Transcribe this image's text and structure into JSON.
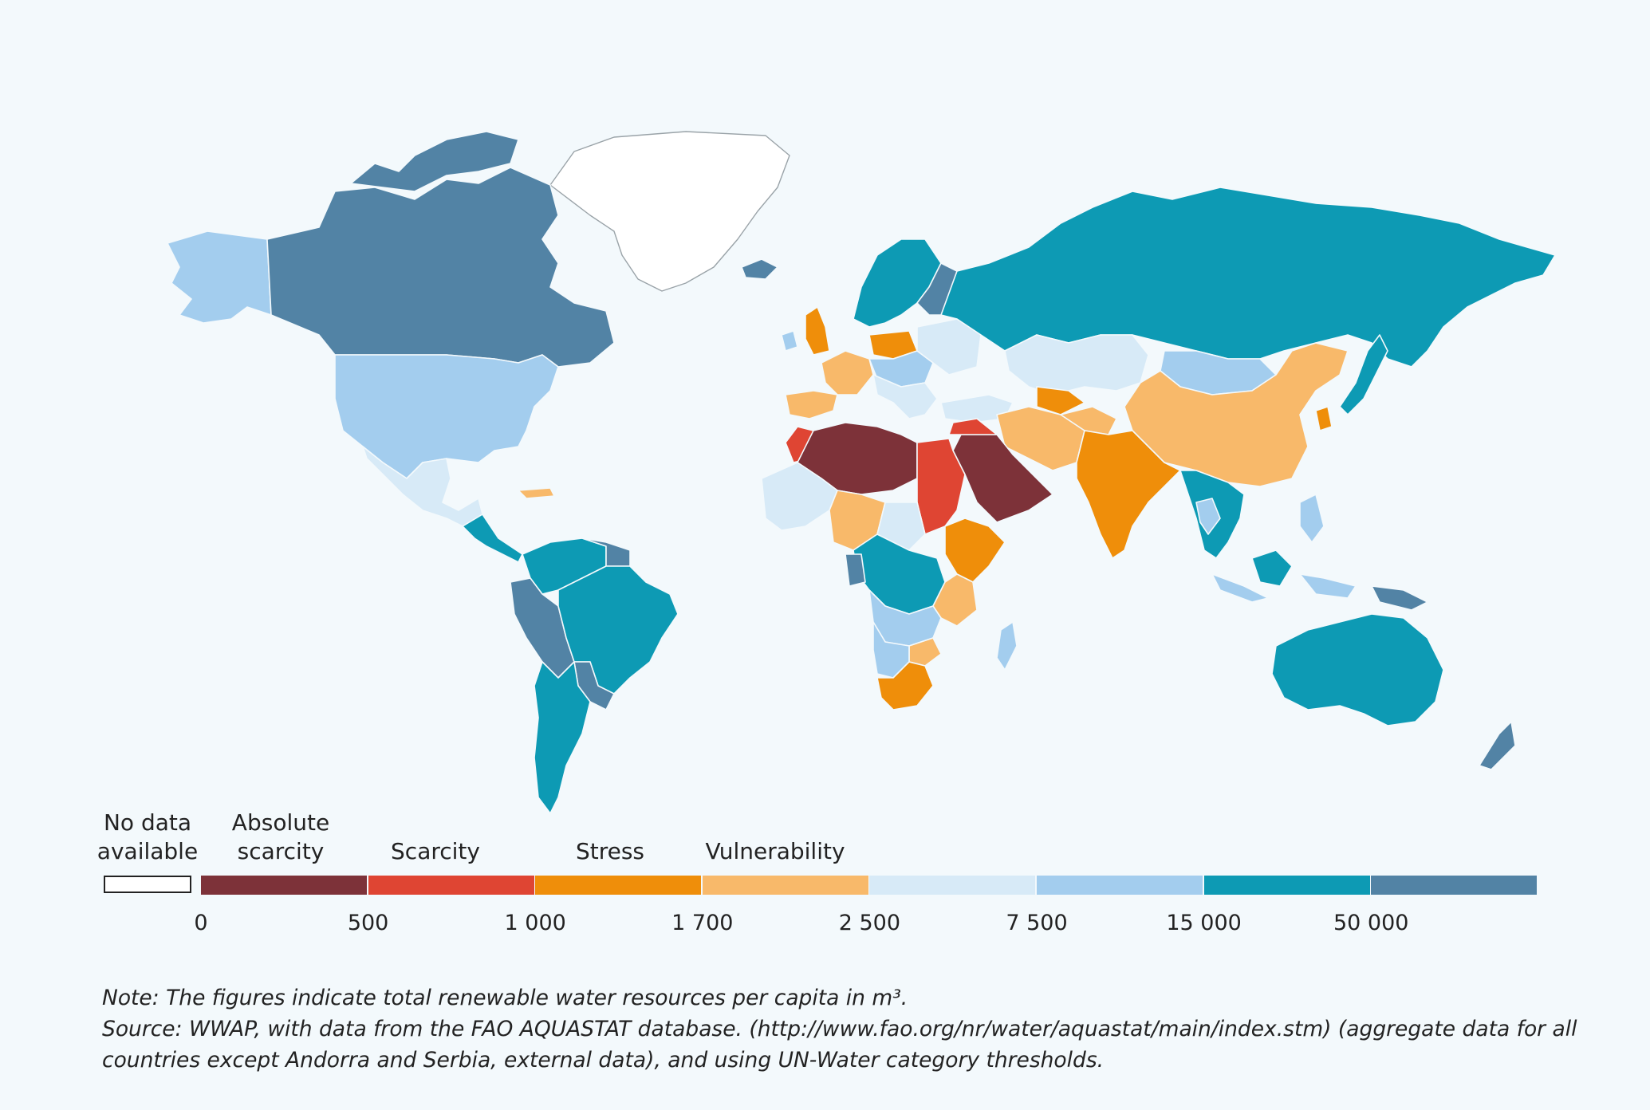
{
  "legend": {
    "no_data": "No data\navailable",
    "categories": [
      {
        "label": "Absolute\nscarcity",
        "color": "#7d3239"
      },
      {
        "label": "Scarcity",
        "color": "#df4533"
      },
      {
        "label": "Stress",
        "color": "#ef8e0a"
      },
      {
        "label": "Vulnerability",
        "color": "#f8b96a"
      }
    ],
    "ticks": [
      "0",
      "500",
      "1 000",
      "1 700",
      "2 500",
      "7 500",
      "15 000",
      "50 000"
    ],
    "bins": [
      {
        "from": 0,
        "to": 500,
        "color": "#7d3239"
      },
      {
        "from": 500,
        "to": 1000,
        "color": "#df4533"
      },
      {
        "from": 1000,
        "to": 1700,
        "color": "#ef8e0a"
      },
      {
        "from": 1700,
        "to": 2500,
        "color": "#f8b96a"
      },
      {
        "from": 2500,
        "to": 7500,
        "color": "#d7eaf7"
      },
      {
        "from": 7500,
        "to": 15000,
        "color": "#a3cdee"
      },
      {
        "from": 15000,
        "to": 50000,
        "color": "#0d9ab4"
      },
      {
        "from": 50000,
        "to": null,
        "color": "#5283a5"
      }
    ]
  },
  "colors": {
    "background": "#f3f9fc",
    "no_data": "#ffffff"
  },
  "note": "Note: The figures indicate total renewable water resources per capita in m³.",
  "source": "Source: WWAP, with data from the FAO AQUASTAT database. (http://www.fao.org/nr/water/aquastat/main/index.stm) (aggregate data for all countries except Andorra and Serbia, external data), and using UN-Water category thresholds."
}
